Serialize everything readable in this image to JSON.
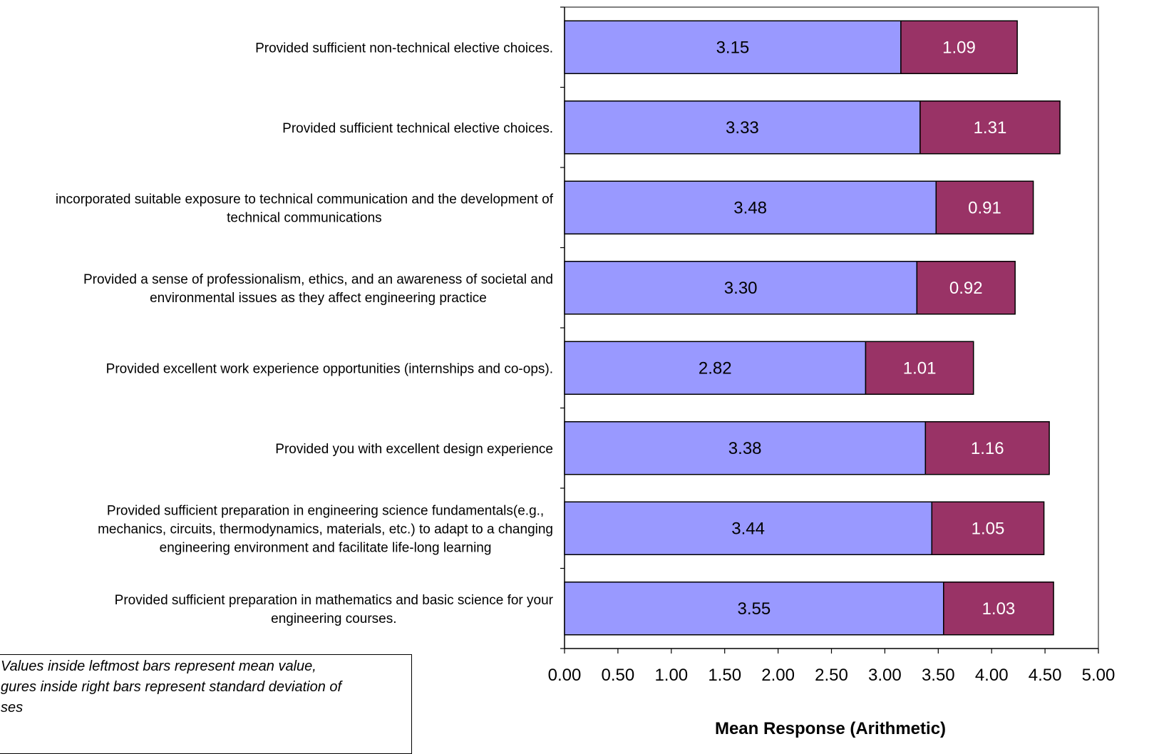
{
  "chart_data": {
    "type": "bar",
    "orientation": "horizontal",
    "stacked": true,
    "categories": [
      [
        "Provided sufficient non-technical elective choices."
      ],
      [
        "Provided sufficient technical elective choices."
      ],
      [
        "incorporated suitable exposure to technical communication and the development of",
        "technical communications"
      ],
      [
        "Provided a sense of professionalism, ethics, and an awareness of societal and",
        "environmental issues as they affect engineering practice"
      ],
      [
        "Provided excellent work experience opportunities (internships and co-ops)."
      ],
      [
        "Provided you with excellent design experience"
      ],
      [
        "Provided sufficient preparation in engineering science fundamentals(e.g.,",
        "mechanics,  circuits, thermodynamics, materials, etc.) to adapt to a changing",
        "engineering environment and facilitate life-long learning"
      ],
      [
        "Provided sufficient preparation in mathematics and basic science for your",
        "engineering courses."
      ]
    ],
    "series": [
      {
        "values": [
          3.15,
          3.33,
          3.48,
          3.3,
          2.82,
          3.38,
          3.44,
          3.55
        ],
        "labels": [
          "3.15",
          "3.33",
          "3.48",
          "3.30",
          "2.82",
          "3.38",
          "3.44",
          "3.55"
        ],
        "color": "#9999ff",
        "label_color": "#000000"
      },
      {
        "values": [
          1.09,
          1.31,
          0.91,
          0.92,
          1.01,
          1.16,
          1.05,
          1.03
        ],
        "labels": [
          "1.09",
          "1.31",
          "0.91",
          "0.92",
          "1.01",
          "1.16",
          "1.05",
          "1.03"
        ],
        "color": "#993366",
        "label_color": "#ffffff"
      }
    ],
    "xlabel": "Mean Response (Arithmetic)",
    "xlim": [
      0,
      5
    ],
    "x_ticks": [
      "0.00",
      "0.50",
      "1.00",
      "1.50",
      "2.00",
      "2.50",
      "3.00",
      "3.50",
      "4.00",
      "4.50",
      "5.00"
    ],
    "grid": false,
    "legend": "none"
  },
  "note": {
    "lines": [
      "Values inside leftmost bars represent mean value,",
      "gures inside right bars represent standard deviation of",
      "ses"
    ]
  }
}
